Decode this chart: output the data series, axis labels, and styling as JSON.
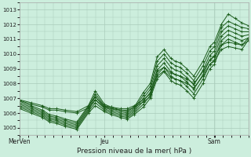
{
  "xlabel": "Pression niveau de la mer( hPa )",
  "bg_color": "#cceedd",
  "grid_color": "#aaccbb",
  "line_color": "#1a5c1a",
  "ylim": [
    1004.5,
    1013.5
  ],
  "yticks": [
    1005,
    1006,
    1007,
    1008,
    1009,
    1010,
    1011,
    1012,
    1013
  ],
  "xtick_labels": [
    "MerVen",
    "Jeu",
    "Sam"
  ],
  "xtick_positions": [
    0.0,
    0.37,
    0.85
  ],
  "series": [
    {
      "points": [
        [
          0.0,
          1006.8
        ],
        [
          0.05,
          1006.5
        ],
        [
          0.1,
          1006.2
        ],
        [
          0.13,
          1005.9
        ],
        [
          0.16,
          1005.8
        ],
        [
          0.2,
          1005.6
        ],
        [
          0.25,
          1005.4
        ],
        [
          0.3,
          1006.5
        ],
        [
          0.33,
          1007.5
        ],
        [
          0.37,
          1006.6
        ],
        [
          0.4,
          1006.4
        ],
        [
          0.44,
          1006.2
        ],
        [
          0.47,
          1006.1
        ],
        [
          0.5,
          1006.4
        ],
        [
          0.54,
          1007.4
        ],
        [
          0.57,
          1008.0
        ],
        [
          0.6,
          1009.8
        ],
        [
          0.63,
          1010.3
        ],
        [
          0.66,
          1009.7
        ],
        [
          0.68,
          1009.5
        ],
        [
          0.7,
          1009.4
        ],
        [
          0.73,
          1009.0
        ],
        [
          0.76,
          1008.5
        ],
        [
          0.8,
          1009.5
        ],
        [
          0.83,
          1010.5
        ],
        [
          0.85,
          1010.8
        ],
        [
          0.88,
          1012.0
        ],
        [
          0.91,
          1012.7
        ],
        [
          0.94,
          1012.4
        ],
        [
          0.97,
          1012.1
        ],
        [
          1.0,
          1011.9
        ]
      ]
    },
    {
      "points": [
        [
          0.0,
          1006.7
        ],
        [
          0.05,
          1006.4
        ],
        [
          0.1,
          1006.1
        ],
        [
          0.13,
          1005.8
        ],
        [
          0.16,
          1005.7
        ],
        [
          0.2,
          1005.5
        ],
        [
          0.25,
          1005.3
        ],
        [
          0.3,
          1006.4
        ],
        [
          0.33,
          1007.3
        ],
        [
          0.37,
          1006.5
        ],
        [
          0.4,
          1006.3
        ],
        [
          0.44,
          1006.1
        ],
        [
          0.47,
          1006.0
        ],
        [
          0.5,
          1006.3
        ],
        [
          0.54,
          1007.2
        ],
        [
          0.57,
          1007.8
        ],
        [
          0.6,
          1009.5
        ],
        [
          0.63,
          1010.0
        ],
        [
          0.66,
          1009.4
        ],
        [
          0.68,
          1009.2
        ],
        [
          0.7,
          1009.1
        ],
        [
          0.73,
          1008.7
        ],
        [
          0.76,
          1008.2
        ],
        [
          0.8,
          1009.2
        ],
        [
          0.83,
          1010.2
        ],
        [
          0.85,
          1010.5
        ],
        [
          0.88,
          1011.8
        ],
        [
          0.91,
          1012.2
        ],
        [
          0.94,
          1012.0
        ],
        [
          0.97,
          1011.8
        ],
        [
          1.0,
          1011.7
        ]
      ]
    },
    {
      "points": [
        [
          0.0,
          1006.6
        ],
        [
          0.05,
          1006.3
        ],
        [
          0.1,
          1006.0
        ],
        [
          0.13,
          1005.7
        ],
        [
          0.16,
          1005.6
        ],
        [
          0.2,
          1005.4
        ],
        [
          0.25,
          1005.2
        ],
        [
          0.3,
          1006.3
        ],
        [
          0.33,
          1007.1
        ],
        [
          0.37,
          1006.4
        ],
        [
          0.4,
          1006.2
        ],
        [
          0.44,
          1006.0
        ],
        [
          0.47,
          1005.9
        ],
        [
          0.5,
          1006.2
        ],
        [
          0.54,
          1007.0
        ],
        [
          0.57,
          1007.6
        ],
        [
          0.6,
          1009.2
        ],
        [
          0.63,
          1009.7
        ],
        [
          0.66,
          1009.1
        ],
        [
          0.68,
          1008.9
        ],
        [
          0.7,
          1008.8
        ],
        [
          0.73,
          1008.4
        ],
        [
          0.76,
          1007.9
        ],
        [
          0.8,
          1008.9
        ],
        [
          0.83,
          1009.9
        ],
        [
          0.85,
          1010.2
        ],
        [
          0.88,
          1011.5
        ],
        [
          0.91,
          1011.9
        ],
        [
          0.94,
          1011.7
        ],
        [
          0.97,
          1011.5
        ],
        [
          1.0,
          1011.5
        ]
      ]
    },
    {
      "points": [
        [
          0.0,
          1006.5
        ],
        [
          0.05,
          1006.2
        ],
        [
          0.1,
          1005.9
        ],
        [
          0.13,
          1005.6
        ],
        [
          0.16,
          1005.5
        ],
        [
          0.2,
          1005.3
        ],
        [
          0.25,
          1005.1
        ],
        [
          0.3,
          1006.2
        ],
        [
          0.33,
          1006.9
        ],
        [
          0.37,
          1006.3
        ],
        [
          0.4,
          1006.1
        ],
        [
          0.44,
          1005.9
        ],
        [
          0.47,
          1005.8
        ],
        [
          0.5,
          1006.1
        ],
        [
          0.54,
          1006.8
        ],
        [
          0.57,
          1007.4
        ],
        [
          0.6,
          1008.9
        ],
        [
          0.63,
          1009.4
        ],
        [
          0.66,
          1008.8
        ],
        [
          0.68,
          1008.6
        ],
        [
          0.7,
          1008.5
        ],
        [
          0.73,
          1008.1
        ],
        [
          0.76,
          1007.6
        ],
        [
          0.8,
          1008.6
        ],
        [
          0.83,
          1009.6
        ],
        [
          0.85,
          1009.9
        ],
        [
          0.88,
          1011.2
        ],
        [
          0.91,
          1011.6
        ],
        [
          0.94,
          1011.4
        ],
        [
          0.97,
          1011.2
        ],
        [
          1.0,
          1011.3
        ]
      ]
    },
    {
      "points": [
        [
          0.0,
          1006.4
        ],
        [
          0.05,
          1006.1
        ],
        [
          0.1,
          1005.8
        ],
        [
          0.13,
          1005.5
        ],
        [
          0.16,
          1005.4
        ],
        [
          0.2,
          1005.2
        ],
        [
          0.25,
          1005.0
        ],
        [
          0.3,
          1006.1
        ],
        [
          0.33,
          1006.7
        ],
        [
          0.37,
          1006.2
        ],
        [
          0.4,
          1006.0
        ],
        [
          0.44,
          1005.8
        ],
        [
          0.47,
          1005.7
        ],
        [
          0.5,
          1006.0
        ],
        [
          0.54,
          1006.6
        ],
        [
          0.57,
          1007.2
        ],
        [
          0.6,
          1008.6
        ],
        [
          0.63,
          1009.1
        ],
        [
          0.66,
          1008.5
        ],
        [
          0.68,
          1008.3
        ],
        [
          0.7,
          1008.2
        ],
        [
          0.73,
          1007.8
        ],
        [
          0.76,
          1007.3
        ],
        [
          0.8,
          1008.3
        ],
        [
          0.83,
          1009.3
        ],
        [
          0.85,
          1009.6
        ],
        [
          0.88,
          1010.9
        ],
        [
          0.91,
          1011.3
        ],
        [
          0.94,
          1011.1
        ],
        [
          0.97,
          1010.9
        ],
        [
          1.0,
          1011.1
        ]
      ]
    },
    {
      "points": [
        [
          0.0,
          1006.3
        ],
        [
          0.05,
          1006.0
        ],
        [
          0.1,
          1005.7
        ],
        [
          0.13,
          1005.4
        ],
        [
          0.16,
          1005.3
        ],
        [
          0.2,
          1005.1
        ],
        [
          0.25,
          1004.9
        ],
        [
          0.3,
          1006.0
        ],
        [
          0.33,
          1006.5
        ],
        [
          0.37,
          1006.1
        ],
        [
          0.4,
          1005.9
        ],
        [
          0.44,
          1005.7
        ],
        [
          0.47,
          1005.6
        ],
        [
          0.5,
          1005.9
        ],
        [
          0.54,
          1006.4
        ],
        [
          0.57,
          1007.0
        ],
        [
          0.6,
          1008.3
        ],
        [
          0.63,
          1008.8
        ],
        [
          0.66,
          1008.2
        ],
        [
          0.68,
          1008.0
        ],
        [
          0.7,
          1007.9
        ],
        [
          0.73,
          1007.5
        ],
        [
          0.76,
          1007.0
        ],
        [
          0.8,
          1008.0
        ],
        [
          0.83,
          1009.0
        ],
        [
          0.85,
          1009.3
        ],
        [
          0.88,
          1010.6
        ],
        [
          0.91,
          1011.0
        ],
        [
          0.94,
          1010.8
        ],
        [
          0.97,
          1010.6
        ],
        [
          1.0,
          1010.9
        ]
      ]
    },
    {
      "points": [
        [
          0.0,
          1006.9
        ],
        [
          0.05,
          1006.7
        ],
        [
          0.1,
          1006.5
        ],
        [
          0.13,
          1006.3
        ],
        [
          0.16,
          1006.3
        ],
        [
          0.2,
          1006.2
        ],
        [
          0.25,
          1006.1
        ],
        [
          0.3,
          1006.5
        ],
        [
          0.33,
          1007.1
        ],
        [
          0.37,
          1006.5
        ],
        [
          0.4,
          1006.4
        ],
        [
          0.44,
          1006.3
        ],
        [
          0.47,
          1006.3
        ],
        [
          0.5,
          1006.5
        ],
        [
          0.54,
          1006.9
        ],
        [
          0.57,
          1007.3
        ],
        [
          0.6,
          1008.8
        ],
        [
          0.63,
          1009.1
        ],
        [
          0.66,
          1008.7
        ],
        [
          0.68,
          1008.6
        ],
        [
          0.7,
          1008.5
        ],
        [
          0.73,
          1008.3
        ],
        [
          0.76,
          1008.0
        ],
        [
          0.8,
          1008.8
        ],
        [
          0.83,
          1009.6
        ],
        [
          0.85,
          1009.8
        ],
        [
          0.88,
          1010.6
        ],
        [
          0.91,
          1010.8
        ],
        [
          0.94,
          1010.7
        ],
        [
          0.97,
          1010.6
        ],
        [
          1.0,
          1011.1
        ]
      ]
    },
    {
      "points": [
        [
          0.0,
          1006.85
        ],
        [
          0.05,
          1006.6
        ],
        [
          0.1,
          1006.4
        ],
        [
          0.13,
          1006.2
        ],
        [
          0.16,
          1006.2
        ],
        [
          0.2,
          1006.1
        ],
        [
          0.25,
          1006.0
        ],
        [
          0.3,
          1006.35
        ],
        [
          0.33,
          1006.9
        ],
        [
          0.37,
          1006.4
        ],
        [
          0.4,
          1006.3
        ],
        [
          0.44,
          1006.2
        ],
        [
          0.47,
          1006.2
        ],
        [
          0.5,
          1006.4
        ],
        [
          0.54,
          1006.75
        ],
        [
          0.57,
          1007.1
        ],
        [
          0.6,
          1008.5
        ],
        [
          0.63,
          1008.85
        ],
        [
          0.66,
          1008.4
        ],
        [
          0.68,
          1008.3
        ],
        [
          0.7,
          1008.2
        ],
        [
          0.73,
          1008.0
        ],
        [
          0.76,
          1007.7
        ],
        [
          0.8,
          1008.5
        ],
        [
          0.83,
          1009.3
        ],
        [
          0.85,
          1009.5
        ],
        [
          0.88,
          1010.3
        ],
        [
          0.91,
          1010.5
        ],
        [
          0.94,
          1010.4
        ],
        [
          0.97,
          1010.3
        ],
        [
          1.0,
          1011.0
        ]
      ]
    }
  ]
}
